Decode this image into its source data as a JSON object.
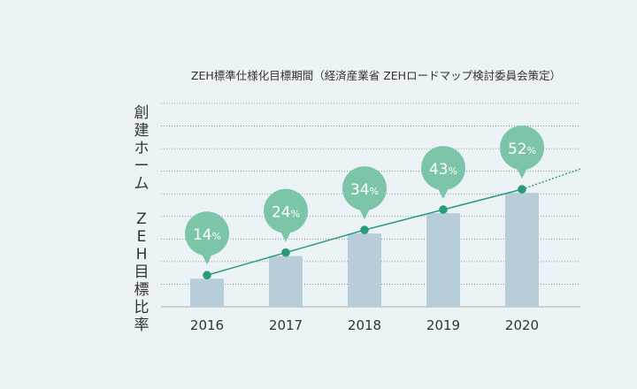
{
  "chart_data": {
    "type": "bar",
    "title": "ZEH標準仕様化目標期間（経済産業省 ZEHロードマップ検討委員会策定）",
    "ylabel": "創建ホーム ZEH目標比率",
    "xlabel": "",
    "categories": [
      "2016",
      "2017",
      "2018",
      "2019",
      "2020"
    ],
    "values": [
      14,
      24,
      34,
      43,
      52
    ],
    "value_suffix": "%",
    "ylim": [
      0,
      90
    ],
    "grid": true,
    "trend_line": true,
    "colors": {
      "bar": "#b7cdd9",
      "line": "#2a9b78",
      "point": "#2a9b78",
      "bubble": "#7cc5a8",
      "grid": "#6f6f6f",
      "background": "#ecf3f6"
    }
  }
}
